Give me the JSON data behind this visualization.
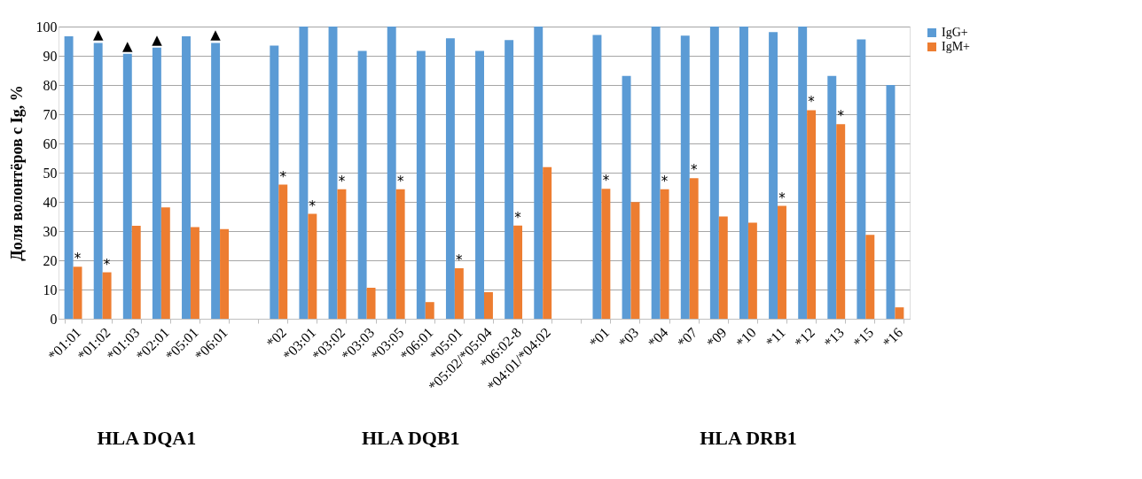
{
  "chart_data": {
    "type": "bar",
    "ylabel": "Доля волонтёров с Ig, %",
    "categories": [
      "*01:01",
      "*01:02",
      "*01:03",
      "*02:01",
      "*05:01",
      "*06:01",
      null,
      "*02",
      "*03:01",
      "*03:02",
      "*03:03",
      "*03:05",
      "*06:01",
      "*05:01",
      "*05:02/*05:04",
      "*06:02-8",
      "*04:01/*04:02",
      null,
      "*01",
      "*03",
      "*04",
      "*07",
      "*09",
      "*10",
      "*11",
      "*12",
      "*13",
      "*15",
      "*16"
    ],
    "series": [
      {
        "name": "IgG+",
        "color": "#5b9bd5",
        "values": [
          96.7,
          94.4,
          90.7,
          92.8,
          96.7,
          94.4,
          null,
          93.5,
          100,
          100,
          91.7,
          100,
          91.7,
          96.0,
          91.7,
          95.4,
          100,
          null,
          97.1,
          83.1,
          100,
          96.9,
          100,
          100,
          98.1,
          100,
          83.1,
          95.6,
          80.0
        ],
        "value_labels": [
          null,
          "▲",
          "▲",
          "▲",
          null,
          "▲",
          null,
          null,
          null,
          null,
          null,
          null,
          null,
          null,
          null,
          null,
          null,
          null,
          null,
          null,
          null,
          null,
          null,
          null,
          null,
          null,
          null,
          null,
          null
        ]
      },
      {
        "name": "IgM+",
        "color": "#ed7d31",
        "values": [
          17.8,
          15.9,
          31.8,
          38.1,
          31.4,
          30.7,
          null,
          45.9,
          35.9,
          44.3,
          10.6,
          44.3,
          5.7,
          17.3,
          9.1,
          31.9,
          51.9,
          null,
          44.5,
          39.9,
          44.3,
          48.1,
          35.0,
          32.9,
          38.6,
          71.4,
          66.6,
          28.7,
          3.9
        ],
        "value_labels": [
          "*",
          "*",
          null,
          null,
          null,
          null,
          null,
          "*",
          "*",
          "*",
          null,
          "*",
          null,
          "*",
          null,
          "*",
          null,
          null,
          "*",
          null,
          "*",
          "*",
          null,
          null,
          "*",
          "*",
          "*",
          null,
          null
        ]
      }
    ],
    "annotations": [
      "HLA DQA1",
      "HLA DQB1",
      "HLA DRB1"
    ],
    "ylim": [
      0,
      100
    ],
    "yticks": [
      0,
      10,
      20,
      30,
      40,
      50,
      60,
      70,
      80,
      90,
      100
    ],
    "grid": "y",
    "legend": "right"
  }
}
